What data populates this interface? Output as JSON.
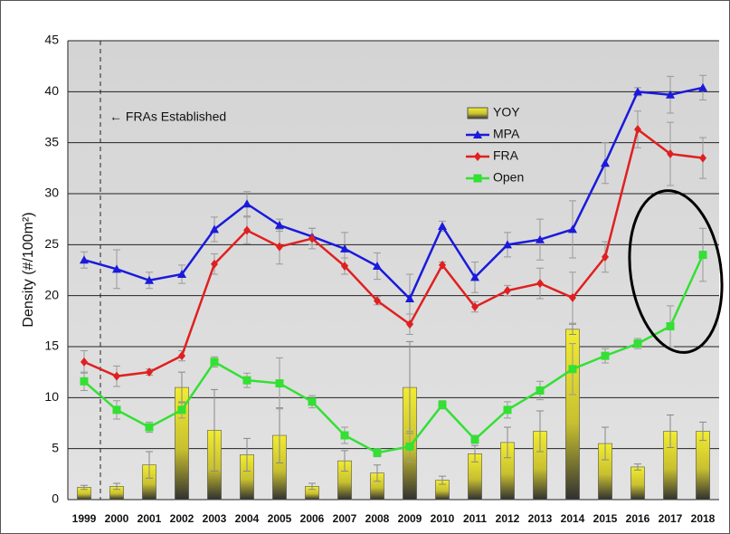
{
  "chart_data": {
    "type": "combo",
    "y_label": "Density (#/100m²)",
    "annotation": "← FRAs Established",
    "categories": [
      "1999",
      "2000",
      "2001",
      "2002",
      "2003",
      "2004",
      "2005",
      "2006",
      "2007",
      "2008",
      "2009",
      "2010",
      "2011",
      "2012",
      "2013",
      "2014",
      "2015",
      "2016",
      "2017",
      "2018"
    ],
    "ylim": [
      0,
      45
    ],
    "yticks": [
      0,
      5,
      10,
      15,
      20,
      25,
      30,
      35,
      40,
      45
    ],
    "grid": true,
    "series": [
      {
        "name": "YOY",
        "type": "bar",
        "color": "#e8e020",
        "values": [
          1.2,
          1.3,
          3.4,
          11,
          6.8,
          4.4,
          6.3,
          1.3,
          3.8,
          2.6,
          11,
          1.9,
          4.5,
          5.6,
          6.7,
          16.7,
          5.5,
          3.2,
          6.7,
          6.7
        ],
        "errors": [
          0.2,
          0.3,
          1.3,
          1.5,
          4,
          1.6,
          2.7,
          0.3,
          1,
          0.8,
          4.5,
          0.4,
          0.8,
          1.5,
          2,
          0.5,
          1.6,
          0.3,
          1.6,
          0.9
        ]
      },
      {
        "name": "MPA",
        "type": "line",
        "marker": "triangle",
        "color": "#1a1adc",
        "values": [
          23.5,
          22.6,
          21.5,
          22.1,
          26.5,
          29.0,
          26.9,
          25.8,
          24.6,
          22.9,
          19.7,
          26.8,
          21.8,
          25.0,
          25.5,
          26.5,
          33.0,
          40.0,
          39.7,
          40.4
        ],
        "errors": [
          0.8,
          1.9,
          0.8,
          0.9,
          1.2,
          1.2,
          0.6,
          0.8,
          1.6,
          1.3,
          2.4,
          0.5,
          1.5,
          1.2,
          2.0,
          2.8,
          2.0,
          0.4,
          1.8,
          1.2
        ]
      },
      {
        "name": "FRA",
        "type": "line",
        "marker": "diamond",
        "color": "#e02020",
        "values": [
          13.5,
          12.1,
          12.5,
          14.1,
          23.1,
          26.4,
          24.8,
          25.6,
          22.9,
          19.5,
          17.2,
          23.0,
          18.9,
          20.5,
          21.2,
          19.8,
          23.8,
          36.3,
          33.9,
          33.5
        ],
        "errors": [
          1.1,
          1.0,
          0.3,
          0.5,
          1.0,
          1.3,
          1.7,
          1.0,
          0.8,
          0.4,
          1.0,
          0.3,
          0.5,
          0.5,
          1.5,
          2.5,
          1.5,
          1.8,
          3.1,
          2.0
        ]
      },
      {
        "name": "Open",
        "type": "line",
        "marker": "square",
        "color": "#33e033",
        "values": [
          11.6,
          8.8,
          7.1,
          8.8,
          13.5,
          11.7,
          11.4,
          9.6,
          6.3,
          4.6,
          5.2,
          9.3,
          5.9,
          8.8,
          10.7,
          12.8,
          14.1,
          15.3,
          17.0,
          24.0
        ],
        "errors": [
          0.9,
          0.9,
          0.5,
          0.8,
          0.5,
          0.7,
          2.5,
          0.6,
          0.8,
          0.4,
          1.5,
          0.4,
          0.4,
          0.8,
          0.9,
          2.5,
          0.7,
          0.5,
          2.0,
          2.6
        ]
      }
    ]
  }
}
